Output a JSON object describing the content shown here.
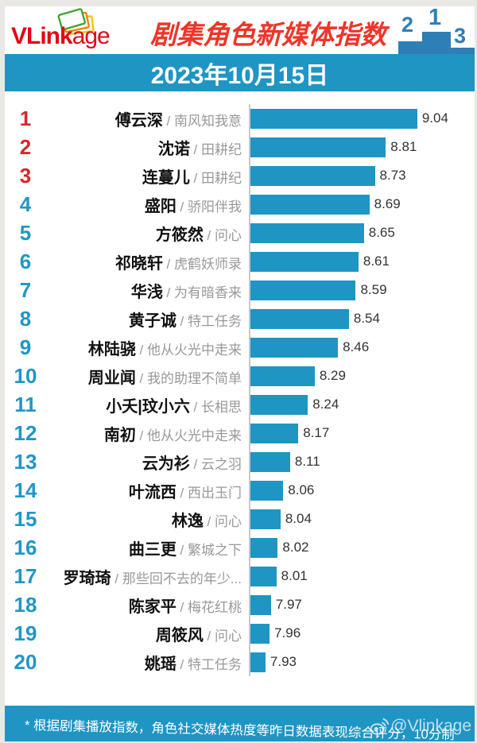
{
  "header": {
    "logo": {
      "bold": "VLink",
      "light": "age"
    },
    "title": "剧集角色新媒体指数",
    "podium": {
      "first": "1",
      "second": "2",
      "third": "3"
    }
  },
  "date_bar": {
    "date": "2023年10月15日"
  },
  "chart_data": {
    "type": "bar",
    "orientation": "horizontal",
    "title": "剧集角色新媒体指数",
    "date": "2023年10月15日",
    "separator": " / ",
    "axis_baseline_value": 7.82,
    "value_range_hint": [
      7.8,
      9.1
    ],
    "rank_top3_color": "#d4282a",
    "rank_color": "#2196c6",
    "bar_color": "#1f95c4",
    "entries": [
      {
        "rank": 1,
        "character": "傅云深",
        "drama": "南风知我意",
        "value": 9.04
      },
      {
        "rank": 2,
        "character": "沈诺",
        "drama": "田耕纪",
        "value": 8.81
      },
      {
        "rank": 3,
        "character": "连蔓儿",
        "drama": "田耕纪",
        "value": 8.73
      },
      {
        "rank": 4,
        "character": "盛阳",
        "drama": "骄阳伴我",
        "value": 8.69
      },
      {
        "rank": 5,
        "character": "方筱然",
        "drama": "问心",
        "value": 8.65
      },
      {
        "rank": 6,
        "character": "祁晓轩",
        "drama": "虎鹤妖师录",
        "value": 8.61
      },
      {
        "rank": 7,
        "character": "华浅",
        "drama": "为有暗香来",
        "value": 8.59
      },
      {
        "rank": 8,
        "character": "黄子诚",
        "drama": "特工任务",
        "value": 8.54
      },
      {
        "rank": 9,
        "character": "林陆骁",
        "drama": "他从火光中走来",
        "value": 8.46
      },
      {
        "rank": 10,
        "character": "周业闻",
        "drama": "我的助理不简单",
        "value": 8.29
      },
      {
        "rank": 11,
        "character": "小夭|玟小六",
        "drama": "长相思",
        "value": 8.24
      },
      {
        "rank": 12,
        "character": "南初",
        "drama": "他从火光中走来",
        "value": 8.17
      },
      {
        "rank": 13,
        "character": "云为衫",
        "drama": "云之羽",
        "value": 8.11
      },
      {
        "rank": 14,
        "character": "叶流西",
        "drama": "西出玉门",
        "value": 8.06
      },
      {
        "rank": 15,
        "character": "林逸",
        "drama": "问心",
        "value": 8.04
      },
      {
        "rank": 16,
        "character": "曲三更",
        "drama": "繁城之下",
        "value": 8.02
      },
      {
        "rank": 17,
        "character": "罗琦琦",
        "drama": "那些回不去的年少...",
        "value": 8.01
      },
      {
        "rank": 18,
        "character": "陈家平",
        "drama": "梅花红桃",
        "value": 7.97
      },
      {
        "rank": 19,
        "character": "周筱风",
        "drama": "问心",
        "value": 7.96
      },
      {
        "rank": 20,
        "character": "姚瑶",
        "drama": "特工任务",
        "value": 7.93
      }
    ]
  },
  "footer": {
    "note": "* 根据剧集播放指数，角色社交媒体热度等昨日数据表现综合评分，10分制",
    "watermark": "@Vlinkage"
  },
  "colors": {
    "accent_blue": "#1f95c4",
    "podium_blue": "#2e7fb5",
    "rank_red": "#d4282a",
    "title_red": "#f03428",
    "logo_red": "#e30613",
    "drama_gray": "#999999",
    "value_text": "#333333",
    "frame_gray": "#e9e8e4"
  }
}
